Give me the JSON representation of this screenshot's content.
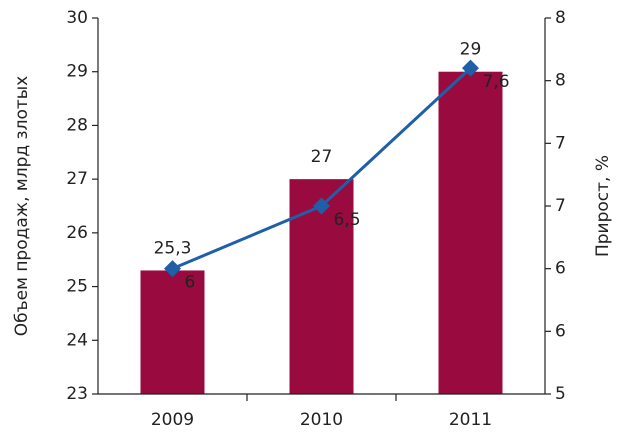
{
  "chart_data": {
    "type": "bar-line",
    "categories": [
      "2009",
      "2010",
      "2011"
    ],
    "y_label": "Объем продаж, млрд злотых",
    "y2_label": "Прирост, %",
    "ylim": [
      23,
      30
    ],
    "yticks": [
      23,
      24,
      25,
      26,
      27,
      28,
      29,
      30
    ],
    "y2lim": [
      5,
      8
    ],
    "y2ticks": [
      5,
      {
        "value": 5.5,
        "label": "6"
      },
      6,
      {
        "value": 6.5,
        "label": "7"
      },
      7,
      {
        "value": 7.5,
        "label": "8"
      },
      8
    ],
    "series": [
      {
        "type": "bar",
        "color": "#990a3f",
        "values": [
          25.3,
          27,
          29
        ],
        "value_labels": [
          "25,3",
          "27",
          "29"
        ]
      },
      {
        "type": "line",
        "axis": "y2",
        "color": "#1f5fa8",
        "values": [
          6,
          6.5,
          7.6
        ],
        "value_labels": [
          "6",
          "6,5",
          "7,6"
        ]
      }
    ]
  }
}
